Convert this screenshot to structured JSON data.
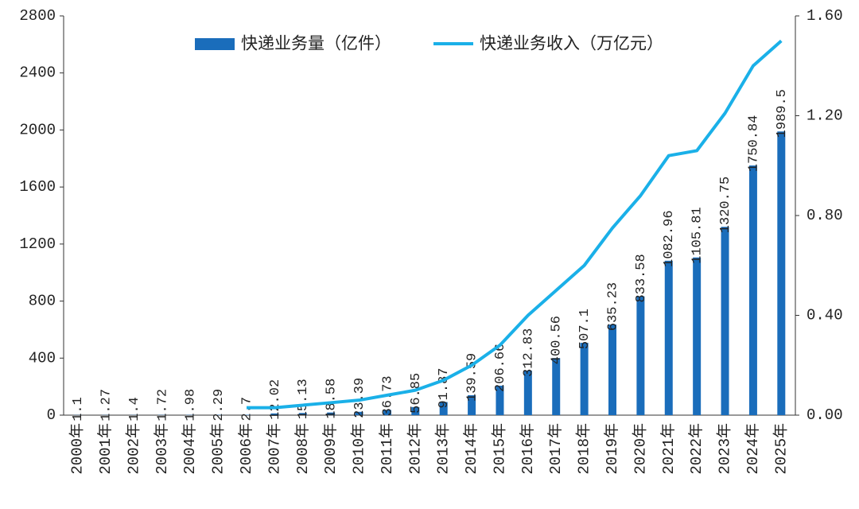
{
  "chart_data": {
    "type": "bar_line",
    "categories": [
      "2000年",
      "2001年",
      "2002年",
      "2003年",
      "2004年",
      "2005年",
      "2006年",
      "2007年",
      "2008年",
      "2009年",
      "2010年",
      "2011年",
      "2012年",
      "2013年",
      "2014年",
      "2015年",
      "2016年",
      "2017年",
      "2018年",
      "2019年",
      "2020年",
      "2021年",
      "2022年",
      "2023年",
      "2024年",
      "2025年"
    ],
    "series": [
      {
        "name": "快递业务量（亿件）",
        "type": "bar",
        "color": "#1a6dbb",
        "values": [
          1.1,
          1.27,
          1.4,
          1.72,
          1.98,
          2.29,
          2.7,
          12.02,
          15.13,
          18.58,
          23.39,
          36.73,
          56.85,
          91.87,
          139.59,
          206.66,
          312.83,
          400.56,
          507.1,
          635.23,
          833.58,
          1082.96,
          1105.81,
          1320.75,
          1750.84,
          1989.5
        ]
      },
      {
        "name": "快递业务收入（万亿元）",
        "type": "line",
        "color": "#1ab0e8",
        "axis": "y2",
        "values": [
          null,
          null,
          null,
          null,
          null,
          null,
          0.03,
          0.03,
          0.04,
          0.05,
          0.06,
          0.08,
          0.1,
          0.14,
          0.2,
          0.28,
          0.4,
          0.5,
          0.6,
          0.75,
          0.88,
          1.04,
          1.06,
          1.21,
          1.4,
          1.5
        ]
      }
    ],
    "ylim": [
      0,
      2800
    ],
    "yticks": [
      0,
      400,
      800,
      1200,
      1600,
      2000,
      2400,
      2800
    ],
    "y2lim": [
      0,
      1.6
    ],
    "y2ticks": [
      {
        "value": 0,
        "label": "0.00"
      },
      {
        "value": 0.4,
        "label": "0.40"
      },
      {
        "value": 0.8,
        "label": "0.80"
      },
      {
        "value": 1.2,
        "label": "1.20"
      },
      {
        "value": 1.6,
        "label": "1.60"
      }
    ],
    "legend": "top"
  }
}
